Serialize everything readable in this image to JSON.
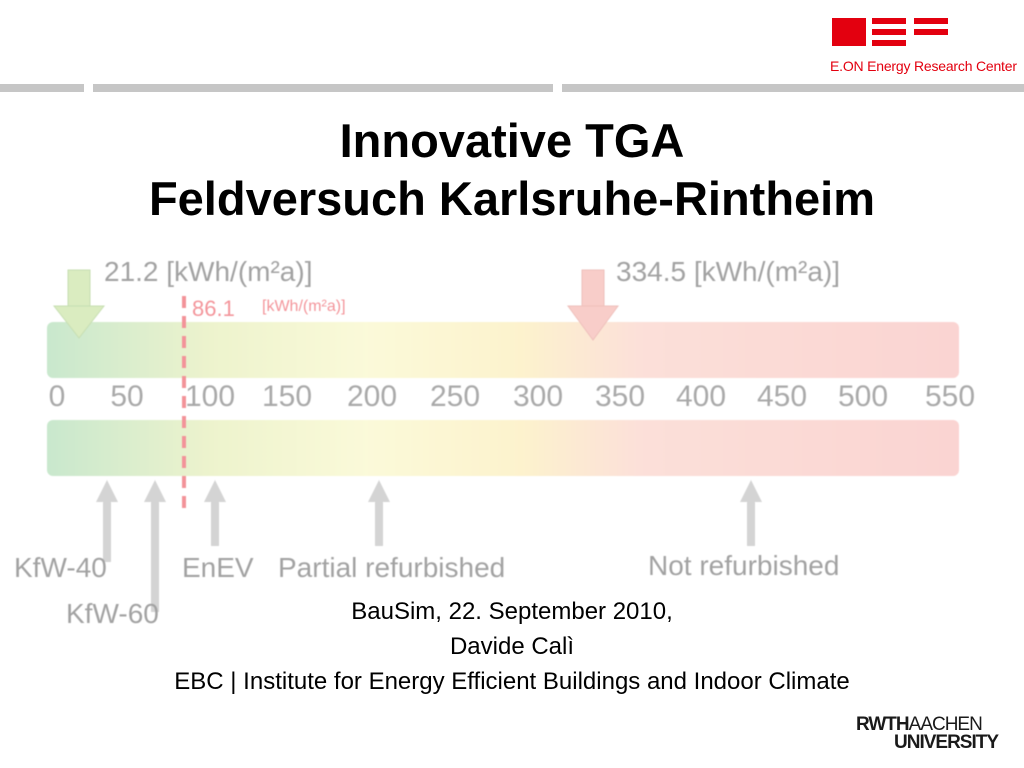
{
  "header": {
    "logo_text": "E.ON Energy Research Center",
    "brand_color": "#e3000f"
  },
  "title": {
    "line1": "Innovative TGA",
    "line2": "Feldversuch Karlsruhe-Rintheim"
  },
  "figure": {
    "left_value": "21.2 [kWh/(m²a)]",
    "right_value": "334.5 [kWh/(m²a)]",
    "dashed_value": "86.1",
    "dashed_unit": "[kWh/(m²a)]",
    "scale_ticks": [
      "0",
      "50",
      "100",
      "150",
      "200",
      "250",
      "300",
      "350",
      "400",
      "450",
      "500",
      "550"
    ],
    "labels": {
      "kfw40": "KfW-40",
      "kfw60": "KfW-60",
      "enev": "EnEV",
      "partial": "Partial refurbished",
      "not_refurbished": "Not refurbished"
    }
  },
  "footer": {
    "line1": "BauSim, 22. September 2010,",
    "line2": "Davide Calì",
    "line3": "EBC | Institute for Energy Efficient Buildings and Indoor Climate"
  },
  "university_logo": {
    "part1": "RWTH",
    "part2": "AACHEN",
    "part3": "UNIVERSITY"
  }
}
